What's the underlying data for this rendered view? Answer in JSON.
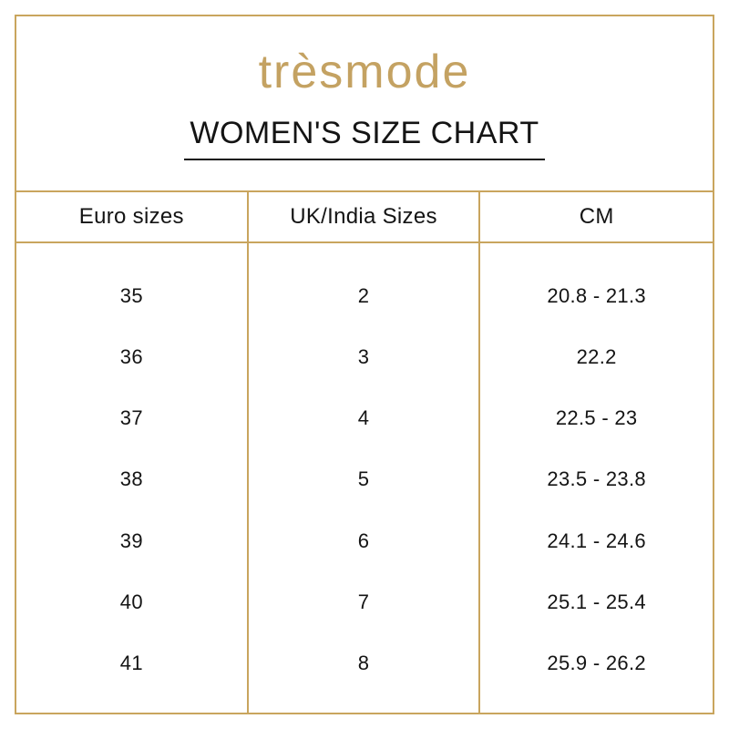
{
  "brand": {
    "logo_text": "trèsmode"
  },
  "title": "WOMEN'S SIZE CHART",
  "colors": {
    "accent_gold": "#C9A55E",
    "logo_gold": "#C4A262",
    "text_black": "#141414",
    "background": "#FFFFFF"
  },
  "chart_data": {
    "type": "table",
    "title": "WOMEN'S SIZE CHART",
    "columns": [
      "Euro sizes",
      "UK/India Sizes",
      "CM"
    ],
    "rows": [
      [
        "35",
        "2",
        "20.8 - 21.3"
      ],
      [
        "36",
        "3",
        "22.2"
      ],
      [
        "37",
        "4",
        "22.5 - 23"
      ],
      [
        "38",
        "5",
        "23.5 - 23.8"
      ],
      [
        "39",
        "6",
        "24.1 - 24.6"
      ],
      [
        "40",
        "7",
        "25.1 - 25.4"
      ],
      [
        "41",
        "8",
        "25.9 - 26.2"
      ]
    ]
  }
}
